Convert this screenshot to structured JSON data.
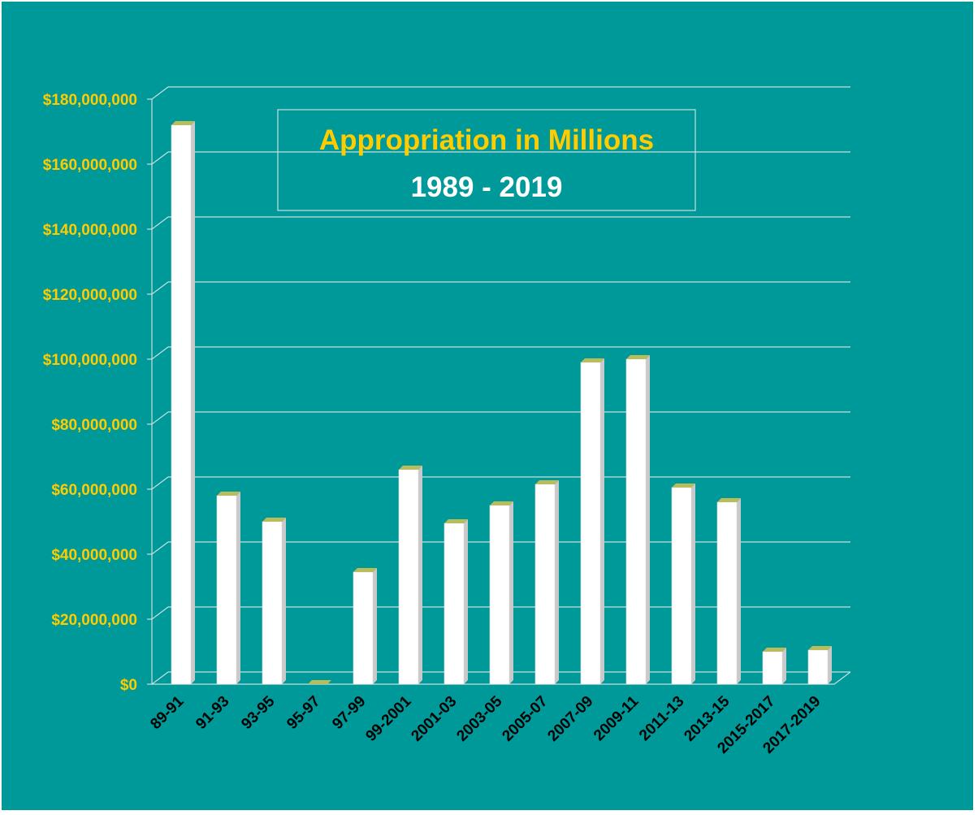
{
  "colors": {
    "background": "#009999",
    "gridline": "#c8dede",
    "bar_front": "#ffffff",
    "bar_side": "#c9c9c9",
    "bar_top": "#b9bc5a",
    "ytick_text": "#ffcc00",
    "xtick_text": "#000000",
    "title_text": "#ffcc00",
    "subtitle_text": "#ffffff"
  },
  "chart_data": {
    "type": "bar",
    "title": "Appropriation in Millions",
    "subtitle": "1989 - 2019",
    "xlabel": "",
    "ylabel": "",
    "categories": [
      "89-91",
      "91-93",
      "93-95",
      "95-97",
      "97-99",
      "99-2001",
      "2001-03",
      "2003-05",
      "2005-07",
      "2007-09",
      "2009-11",
      "2011-13",
      "2013-15",
      "2015-2017",
      "2017-2019"
    ],
    "values": [
      172000000,
      58000000,
      50000000,
      0,
      34500000,
      66000000,
      49500000,
      55000000,
      61500000,
      99000000,
      100000000,
      60500000,
      56000000,
      10000000,
      10500000
    ],
    "ylim": [
      0,
      180000000
    ],
    "yticks": [
      0,
      20000000,
      40000000,
      60000000,
      80000000,
      100000000,
      120000000,
      140000000,
      160000000,
      180000000
    ],
    "ytick_labels": [
      "$0",
      "$20,000,000",
      "$40,000,000",
      "$60,000,000",
      "$80,000,000",
      "$100,000,000",
      "$120,000,000",
      "$140,000,000",
      "$160,000,000",
      "$180,000,000"
    ],
    "grid": true,
    "legend": "none"
  }
}
